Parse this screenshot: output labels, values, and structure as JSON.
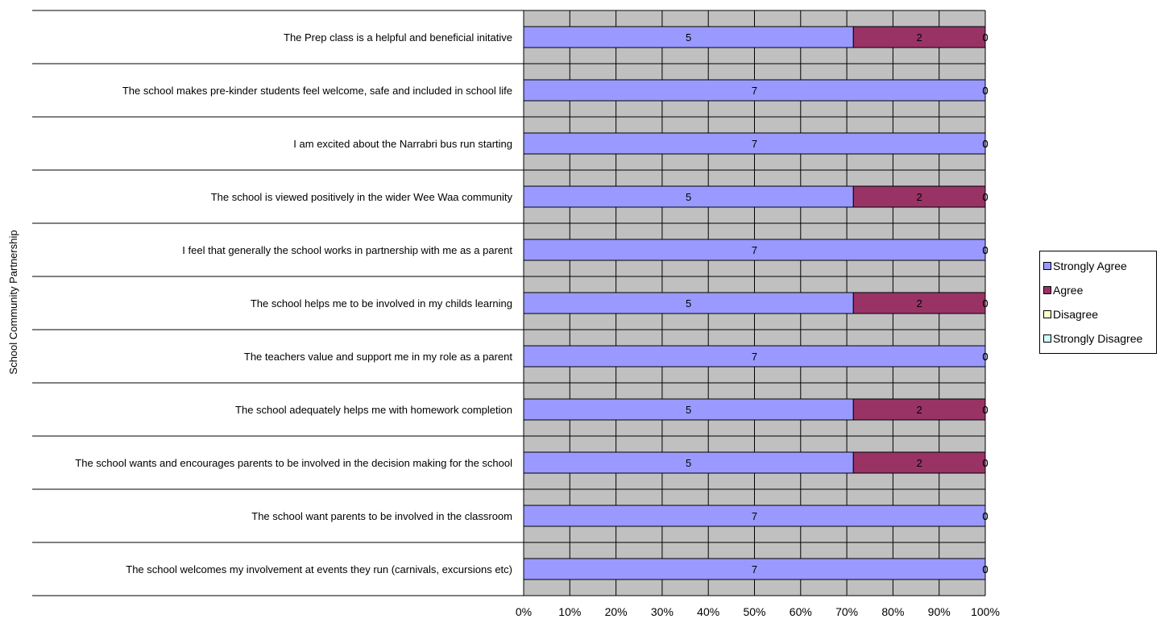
{
  "chart_data": {
    "type": "bar",
    "orientation": "horizontal",
    "stacked": "percent",
    "title": "",
    "xlabel": "",
    "ylabel": "School Community Partnership",
    "categories": [
      "The Prep class is a helpful and beneficial initative",
      "The school makes pre-kinder students feel welcome, safe and included in school life",
      "I am excited about the Narrabri bus run starting",
      "The school is viewed positively in the wider Wee Waa community",
      "I feel that generally the school works in partnership with me as a parent",
      "The school helps me to be involved in my childs learning",
      "The teachers value and support me in my role as a parent",
      "The school adequately helps me with homework completion",
      "The school wants and encourages parents to be involved in the decision making for the school",
      "The school want parents to be involved in the classroom",
      "The school welcomes my involvement at events they run (carnivals, excursions etc)"
    ],
    "series": [
      {
        "name": "Strongly Agree",
        "color": "#9999ff",
        "values": [
          5,
          7,
          7,
          5,
          7,
          5,
          7,
          5,
          5,
          7,
          7
        ]
      },
      {
        "name": "Agree",
        "color": "#993366",
        "values": [
          2,
          0,
          0,
          2,
          0,
          2,
          0,
          2,
          2,
          0,
          0
        ]
      },
      {
        "name": "Disagree",
        "color": "#ffffcc",
        "values": [
          0,
          0,
          0,
          0,
          0,
          0,
          0,
          0,
          0,
          0,
          0
        ]
      },
      {
        "name": "Strongly Disagree",
        "color": "#ccffff",
        "values": [
          0,
          0,
          0,
          0,
          0,
          0,
          0,
          0,
          0,
          0,
          0
        ]
      }
    ],
    "xlim": [
      0,
      100
    ],
    "xticks": [
      "0%",
      "10%",
      "20%",
      "30%",
      "40%",
      "50%",
      "60%",
      "70%",
      "80%",
      "90%",
      "100%"
    ],
    "grid": true,
    "plot_background": "#c0c0c0",
    "legend_position": "right"
  }
}
